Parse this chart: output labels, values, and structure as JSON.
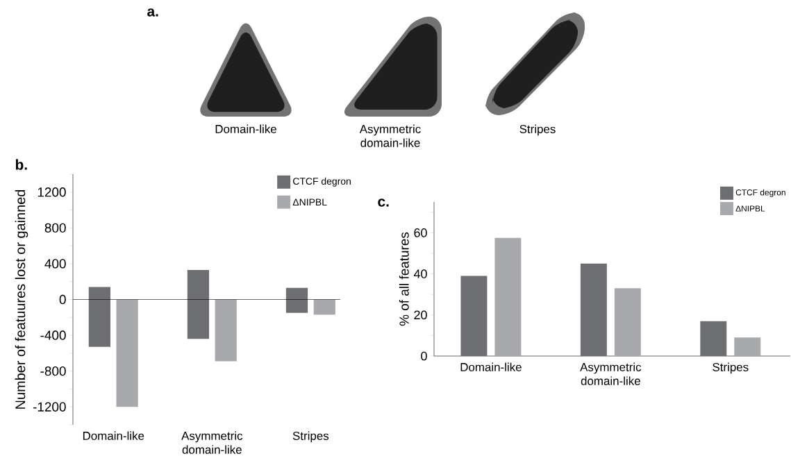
{
  "chart_data": [
    {
      "type": "other",
      "title": "a.",
      "annotations": [
        "Domain-like",
        "Asymmetric domain-like",
        "Stripes"
      ]
    },
    {
      "type": "bar",
      "title": "b.",
      "ylabel": "Number of featuures lost or gainned",
      "categories": [
        "Domain-like",
        "Asymmetric domain-like",
        "Stripes"
      ],
      "series": [
        {
          "name": "CTCF degron",
          "color": "#6d6e71",
          "base": [
            -530,
            -440,
            -150
          ],
          "values": [
            670,
            770,
            280
          ]
        },
        {
          "name": "ΔNIPBL",
          "color": "#a7a9ac",
          "values": [
            -1200,
            -690,
            -170
          ]
        }
      ],
      "ylim": [
        -1400,
        1400
      ],
      "yticks": [
        {
          "value": -1400,
          "label": null
        },
        -1200,
        {
          "value": -1000,
          "label": null
        },
        -800,
        {
          "value": -600,
          "label": null
        },
        -400,
        {
          "value": -200,
          "label": null
        },
        0,
        {
          "value": 200,
          "label": null
        },
        400,
        {
          "value": 600,
          "label": null
        },
        800,
        {
          "value": 1000,
          "label": null
        },
        1200,
        {
          "value": 1400,
          "label": null
        }
      ],
      "legend": "top right"
    },
    {
      "type": "bar",
      "title": "c.",
      "ylabel": "% of all features",
      "categories": [
        "Domain-like",
        "Asymmetric domain-like",
        "Stripes"
      ],
      "series": [
        {
          "name": "CTCF degron",
          "color": "#6d6e71",
          "values": [
            39,
            45,
            17
          ]
        },
        {
          "name": "ΔNIPBL",
          "color": "#a7a9ac",
          "values": [
            57.5,
            33,
            9
          ]
        }
      ],
      "ylim": [
        0,
        75
      ],
      "yticks": [
        0,
        {
          "value": 10,
          "label": null
        },
        20,
        {
          "value": 30,
          "label": null
        },
        40,
        {
          "value": 50,
          "label": null
        },
        60,
        {
          "value": 70,
          "label": null
        }
      ],
      "legend": "top right"
    }
  ]
}
